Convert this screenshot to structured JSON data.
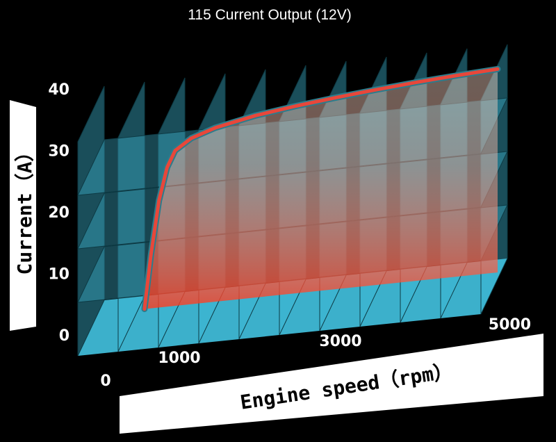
{
  "chart_data": {
    "type": "line",
    "title": "115 Current Output (12V)",
    "xlabel": "Engine speed（rpm）",
    "ylabel": "Current（A）",
    "xlim": [
      0,
      5000
    ],
    "ylim": [
      0,
      40
    ],
    "x_ticks": [
      0,
      1000,
      3000,
      5000
    ],
    "y_ticks": [
      0,
      10,
      20,
      30,
      40
    ],
    "grid": true,
    "series": [
      {
        "x": [
          620,
          700,
          800,
          900,
          1000,
          1200,
          1500,
          2000,
          2500,
          3000,
          3500,
          4000,
          4500,
          5000
        ],
        "y": [
          0,
          10,
          20,
          26,
          29,
          31,
          32.5,
          34,
          35,
          35.8,
          36.5,
          37.1,
          37.6,
          38
        ],
        "color": "#e8473a"
      }
    ]
  },
  "colors": {
    "background": "#000000",
    "panel": "#3fb9d6",
    "curve": "#e8473a",
    "curve_edge": "#2c7c8c",
    "label_band": "#ffffff"
  }
}
